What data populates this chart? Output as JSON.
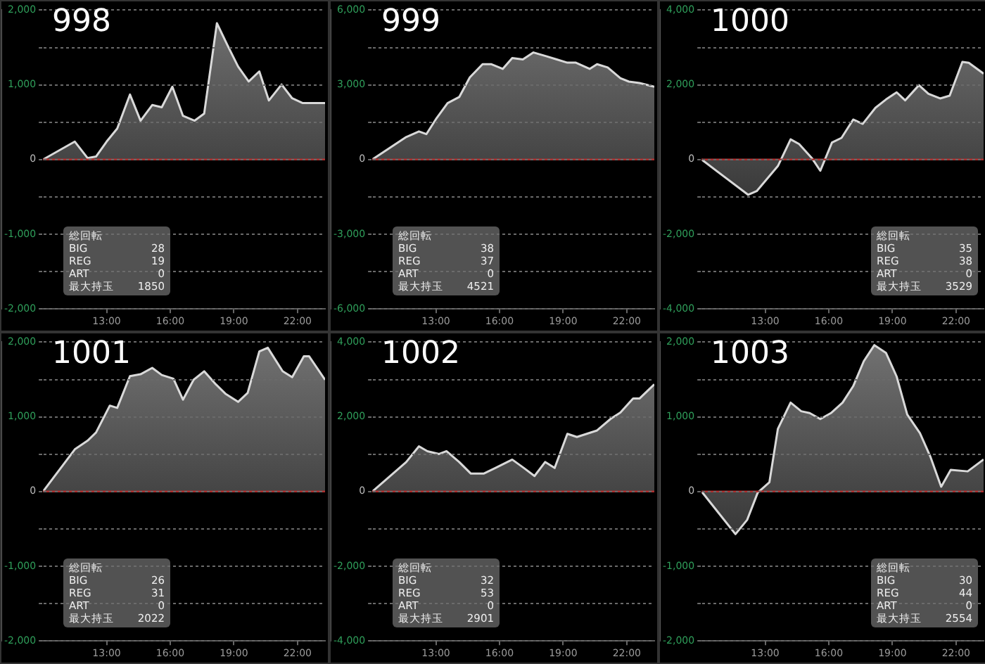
{
  "chart_data": [
    {
      "type": "area",
      "title": "998",
      "marker": "none",
      "grid": "y",
      "xlim": [
        10,
        23.3
      ],
      "xticks": [
        {
          "value": 13,
          "label": "13:00"
        },
        {
          "value": 16,
          "label": "16:00"
        },
        {
          "value": 19,
          "label": "19:00"
        },
        {
          "value": 22,
          "label": "22:00"
        }
      ],
      "ylim": [
        -2000,
        2000
      ],
      "yticks": [
        {
          "value": -2000,
          "label": "-2,000"
        },
        {
          "value": -1500,
          "label": null
        },
        {
          "value": -1000,
          "label": "-1,000"
        },
        {
          "value": -500,
          "label": null
        },
        {
          "value": 0,
          "label": "0"
        },
        {
          "value": 500,
          "label": null
        },
        {
          "value": 1000,
          "label": "1,000"
        },
        {
          "value": 1500,
          "label": null
        },
        {
          "value": 2000,
          "label": "2,000"
        }
      ],
      "x": [
        10,
        11.5,
        12.1,
        12.5,
        13,
        13.5,
        14.1,
        14.6,
        15.15,
        15.6,
        16.1,
        16.6,
        17.15,
        17.6,
        18.2,
        18.7,
        19.2,
        19.7,
        20.2,
        20.65,
        21.25,
        21.75,
        22.25,
        23.3
      ],
      "series": [
        {
          "color": "#d9d9d9",
          "values": [
            0,
            240,
            20,
            40,
            240,
            415,
            870,
            520,
            730,
            700,
            975,
            585,
            520,
            615,
            1825,
            1530,
            1245,
            1045,
            1180,
            790,
            1005,
            820,
            755,
            755
          ]
        }
      ],
      "ref_lines": [
        {
          "axis": "y",
          "value": 0,
          "color": "#b03030"
        }
      ],
      "annotations": [
        "総回転",
        "BIG 28",
        "REG 19",
        "ART 0",
        "最大持玉 1850"
      ]
    },
    {
      "type": "area",
      "title": "999",
      "marker": "none",
      "grid": "y",
      "xlim": [
        10,
        23.3
      ],
      "xticks": [
        {
          "value": 13,
          "label": "13:00"
        },
        {
          "value": 16,
          "label": "16:00"
        },
        {
          "value": 19,
          "label": "19:00"
        },
        {
          "value": 22,
          "label": "22:00"
        }
      ],
      "ylim": [
        -6000,
        6000
      ],
      "yticks": [
        {
          "value": -6000,
          "label": "-6,000"
        },
        {
          "value": -4500,
          "label": null
        },
        {
          "value": -3000,
          "label": "-3,000"
        },
        {
          "value": -1500,
          "label": null
        },
        {
          "value": 0,
          "label": "0"
        },
        {
          "value": 1500,
          "label": null
        },
        {
          "value": 3000,
          "label": "3,000"
        },
        {
          "value": 4500,
          "label": null
        },
        {
          "value": 6000,
          "label": "6,000"
        }
      ],
      "x": [
        10,
        11.6,
        12.2,
        12.55,
        13,
        13.55,
        14.1,
        14.6,
        15.2,
        15.6,
        16.15,
        16.6,
        17.1,
        17.6,
        18.2,
        18.7,
        19.2,
        19.6,
        20.25,
        20.6,
        21.1,
        21.7,
        22.1,
        22.6,
        23.3
      ],
      "series": [
        {
          "color": "#d9d9d9",
          "values": [
            0,
            905,
            1130,
            1020,
            1620,
            2265,
            2510,
            3300,
            3830,
            3830,
            3640,
            4075,
            4020,
            4300,
            4150,
            4020,
            3890,
            3890,
            3640,
            3830,
            3700,
            3265,
            3130,
            3075,
            2925
          ]
        }
      ],
      "ref_lines": [
        {
          "axis": "y",
          "value": 0,
          "color": "#b03030"
        }
      ],
      "annotations": [
        "総回転",
        "BIG 38",
        "REG 37",
        "ART 0",
        "最大持玉 4521"
      ]
    },
    {
      "type": "area",
      "title": "1000",
      "marker": "none",
      "grid": "y",
      "xlim": [
        10,
        23.3
      ],
      "xticks": [
        {
          "value": 13,
          "label": "13:00"
        },
        {
          "value": 16,
          "label": "16:00"
        },
        {
          "value": 19,
          "label": "19:00"
        },
        {
          "value": 22,
          "label": "22:00"
        }
      ],
      "ylim": [
        -4000,
        4000
      ],
      "yticks": [
        {
          "value": -4000,
          "label": "-4,000"
        },
        {
          "value": -3000,
          "label": null
        },
        {
          "value": -2000,
          "label": "-2,000"
        },
        {
          "value": -1000,
          "label": null
        },
        {
          "value": 0,
          "label": "0"
        },
        {
          "value": 1000,
          "label": null
        },
        {
          "value": 2000,
          "label": "2,000"
        },
        {
          "value": 3000,
          "label": null
        },
        {
          "value": 4000,
          "label": "4,000"
        }
      ],
      "x": [
        10,
        12.2,
        12.6,
        13.6,
        14.2,
        14.6,
        15.2,
        15.6,
        16.15,
        16.6,
        17.15,
        17.6,
        18.2,
        18.7,
        19.2,
        19.6,
        20.25,
        20.7,
        21.25,
        21.7,
        22.3,
        22.6,
        23.3
      ],
      "series": [
        {
          "color": "#d9d9d9",
          "values": [
            0,
            -945,
            -845,
            -175,
            540,
            415,
            40,
            -300,
            455,
            580,
            1070,
            955,
            1385,
            1610,
            1800,
            1585,
            1990,
            1760,
            1635,
            1710,
            2615,
            2590,
            2300
          ]
        }
      ],
      "ref_lines": [
        {
          "axis": "y",
          "value": 0,
          "color": "#b03030"
        }
      ],
      "annotations": [
        "総回転",
        "BIG 35",
        "REG 38",
        "ART 0",
        "最大持玉 3529"
      ]
    },
    {
      "type": "area",
      "title": "1001",
      "marker": "none",
      "grid": "y",
      "xlim": [
        10,
        23.3
      ],
      "xticks": [
        {
          "value": 13,
          "label": "13:00"
        },
        {
          "value": 16,
          "label": "16:00"
        },
        {
          "value": 19,
          "label": "19:00"
        },
        {
          "value": 22,
          "label": "22:00"
        }
      ],
      "ylim": [
        -2000,
        2000
      ],
      "yticks": [
        {
          "value": -2000,
          "label": "-2,000"
        },
        {
          "value": -1500,
          "label": null
        },
        {
          "value": -1000,
          "label": "-1,000"
        },
        {
          "value": -500,
          "label": null
        },
        {
          "value": 0,
          "label": "0"
        },
        {
          "value": 500,
          "label": null
        },
        {
          "value": 1000,
          "label": "1,000"
        },
        {
          "value": 1500,
          "label": null
        },
        {
          "value": 2000,
          "label": "2,000"
        }
      ],
      "x": [
        10,
        11.5,
        12.1,
        12.5,
        13.15,
        13.5,
        14.1,
        14.6,
        15.15,
        15.6,
        16.15,
        16.6,
        17.1,
        17.6,
        18.15,
        18.6,
        19.2,
        19.65,
        20.2,
        20.6,
        21.3,
        21.75,
        22.3,
        22.55,
        23.3
      ],
      "series": [
        {
          "color": "#d9d9d9",
          "values": [
            0,
            565,
            680,
            790,
            1150,
            1120,
            1545,
            1570,
            1655,
            1560,
            1510,
            1230,
            1495,
            1610,
            1435,
            1310,
            1200,
            1320,
            1875,
            1925,
            1610,
            1530,
            1810,
            1810,
            1495
          ]
        }
      ],
      "ref_lines": [
        {
          "axis": "y",
          "value": 0,
          "color": "#b03030"
        }
      ],
      "annotations": [
        "総回転",
        "BIG 26",
        "REG 31",
        "ART 0",
        "最大持玉 2022"
      ]
    },
    {
      "type": "area",
      "title": "1002",
      "marker": "none",
      "grid": "y",
      "xlim": [
        10,
        23.3
      ],
      "xticks": [
        {
          "value": 13,
          "label": "13:00"
        },
        {
          "value": 16,
          "label": "16:00"
        },
        {
          "value": 19,
          "label": "19:00"
        },
        {
          "value": 22,
          "label": "22:00"
        }
      ],
      "ylim": [
        -4000,
        4000
      ],
      "yticks": [
        {
          "value": -4000,
          "label": "-4,000"
        },
        {
          "value": -3000,
          "label": null
        },
        {
          "value": -2000,
          "label": "-2,000"
        },
        {
          "value": -1000,
          "label": null
        },
        {
          "value": 0,
          "label": "0"
        },
        {
          "value": 1000,
          "label": null
        },
        {
          "value": 2000,
          "label": "2,000"
        },
        {
          "value": 3000,
          "label": null
        },
        {
          "value": 4000,
          "label": "4,000"
        }
      ],
      "x": [
        10,
        11.6,
        12.2,
        12.6,
        13.15,
        13.5,
        14.1,
        14.65,
        15.25,
        15.8,
        16.6,
        17.15,
        17.65,
        18.15,
        18.6,
        19.2,
        19.65,
        20.6,
        21.25,
        21.7,
        22.3,
        22.6,
        23.3
      ],
      "series": [
        {
          "color": "#d9d9d9",
          "values": [
            0,
            790,
            1210,
            1080,
            1005,
            1080,
            790,
            480,
            480,
            630,
            855,
            630,
            415,
            790,
            630,
            1545,
            1460,
            1635,
            1950,
            2115,
            2490,
            2490,
            2870
          ]
        }
      ],
      "ref_lines": [
        {
          "axis": "y",
          "value": 0,
          "color": "#b03030"
        }
      ],
      "annotations": [
        "総回転",
        "BIG 32",
        "REG 53",
        "ART 0",
        "最大持玉 2901"
      ]
    },
    {
      "type": "area",
      "title": "1003",
      "marker": "none",
      "grid": "y",
      "xlim": [
        10,
        23.3
      ],
      "xticks": [
        {
          "value": 13,
          "label": "13:00"
        },
        {
          "value": 16,
          "label": "16:00"
        },
        {
          "value": 19,
          "label": "19:00"
        },
        {
          "value": 22,
          "label": "22:00"
        }
      ],
      "ylim": [
        -2000,
        2000
      ],
      "yticks": [
        {
          "value": -2000,
          "label": "-2,000"
        },
        {
          "value": -1500,
          "label": null
        },
        {
          "value": -1000,
          "label": "-1,000"
        },
        {
          "value": -500,
          "label": null
        },
        {
          "value": 0,
          "label": "0"
        },
        {
          "value": 500,
          "label": null
        },
        {
          "value": 1000,
          "label": "1,000"
        },
        {
          "value": 1500,
          "label": null
        },
        {
          "value": 2000,
          "label": "2,000"
        }
      ],
      "x": [
        10,
        11.6,
        12.15,
        12.65,
        13.2,
        13.6,
        14.2,
        14.7,
        15.1,
        15.6,
        16.1,
        16.65,
        17.15,
        17.65,
        18.15,
        18.7,
        19.2,
        19.7,
        20.3,
        20.8,
        21.3,
        21.75,
        22.55,
        23.3
      ],
      "series": [
        {
          "color": "#d9d9d9",
          "values": [
            0,
            -570,
            -380,
            -15,
            125,
            840,
            1190,
            1075,
            1050,
            970,
            1050,
            1190,
            1410,
            1745,
            1960,
            1855,
            1540,
            1030,
            780,
            460,
            65,
            290,
            270,
            430
          ]
        }
      ],
      "ref_lines": [
        {
          "axis": "y",
          "value": 0,
          "color": "#b03030"
        }
      ],
      "annotations": [
        "総回転",
        "BIG 30",
        "REG 44",
        "ART 0",
        "最大持玉 2554"
      ]
    }
  ]
}
